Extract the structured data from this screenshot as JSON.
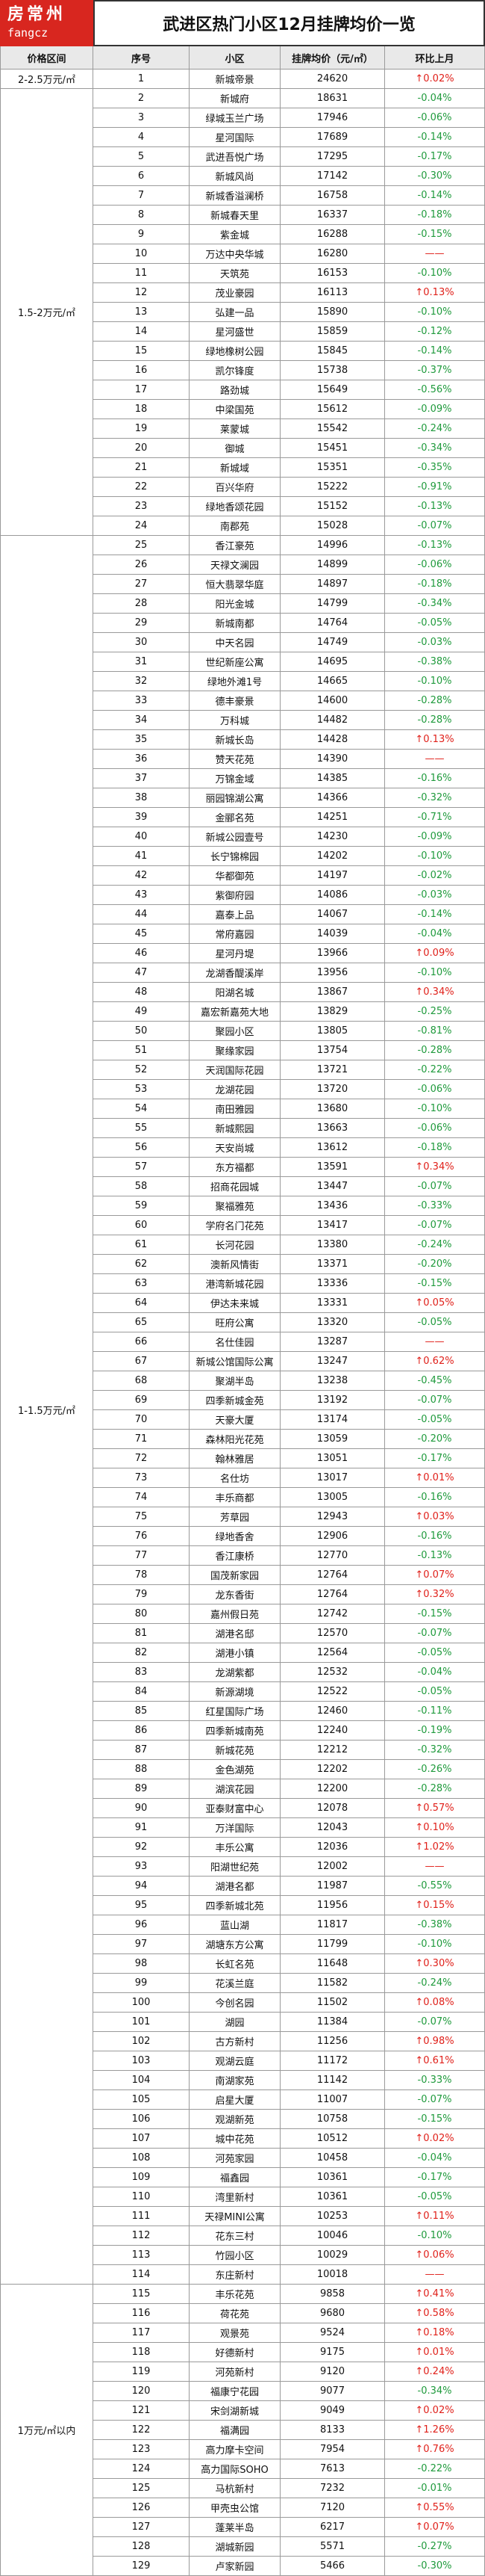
{
  "header": {
    "logo": "房常州",
    "logo_sub": "fangcz",
    "title": "武进区热门小区12月挂牌均价一览"
  },
  "table": {
    "columns": [
      "价格区间",
      "序号",
      "小区",
      "挂牌均价（元/㎡）",
      "环比上月"
    ],
    "groups": [
      {
        "range": "2-2.5万元/㎡",
        "rows": [
          [
            1,
            "新城帝景",
            24620,
            "↑0.02%"
          ]
        ]
      },
      {
        "range": "1.5-2万元/㎡",
        "rows": [
          [
            2,
            "新城府",
            18631,
            "-0.04%"
          ],
          [
            3,
            "绿城玉兰广场",
            17946,
            "-0.06%"
          ],
          [
            4,
            "星河国际",
            17689,
            "-0.14%"
          ],
          [
            5,
            "武进吾悦广场",
            17295,
            "-0.17%"
          ],
          [
            6,
            "新城风尚",
            17142,
            "-0.30%"
          ],
          [
            7,
            "新城香溢澜桥",
            16758,
            "-0.14%"
          ],
          [
            8,
            "新城春天里",
            16337,
            "-0.18%"
          ],
          [
            9,
            "紫金城",
            16288,
            "-0.15%"
          ],
          [
            10,
            "万达中央华城",
            16280,
            "——"
          ],
          [
            11,
            "天筑苑",
            16153,
            "-0.10%"
          ],
          [
            12,
            "茂业豪园",
            16113,
            "↑0.13%"
          ],
          [
            13,
            "弘建一品",
            15890,
            "-0.10%"
          ],
          [
            14,
            "星河盛世",
            15859,
            "-0.12%"
          ],
          [
            15,
            "绿地橡树公园",
            15845,
            "-0.14%"
          ],
          [
            16,
            "凯尔锋度",
            15738,
            "-0.37%"
          ],
          [
            17,
            "路劲城",
            15649,
            "-0.56%"
          ],
          [
            18,
            "中梁国苑",
            15612,
            "-0.09%"
          ],
          [
            19,
            "莱蒙城",
            15542,
            "-0.24%"
          ],
          [
            20,
            "御城",
            15451,
            "-0.34%"
          ],
          [
            21,
            "新城域",
            15351,
            "-0.35%"
          ],
          [
            22,
            "百兴华府",
            15222,
            "-0.91%"
          ],
          [
            23,
            "绿地香颂花园",
            15152,
            "-0.13%"
          ],
          [
            24,
            "南郡苑",
            15028,
            "-0.07%"
          ]
        ]
      },
      {
        "range": "1-1.5万元/㎡",
        "rows": [
          [
            25,
            "香江豪苑",
            14996,
            "-0.13%"
          ],
          [
            26,
            "天禄文澜园",
            14899,
            "-0.06%"
          ],
          [
            27,
            "恒大翡翠华庭",
            14897,
            "-0.18%"
          ],
          [
            28,
            "阳光金城",
            14799,
            "-0.34%"
          ],
          [
            29,
            "新城南都",
            14764,
            "-0.05%"
          ],
          [
            30,
            "中天名园",
            14749,
            "-0.03%"
          ],
          [
            31,
            "世纪新座公寓",
            14695,
            "-0.38%"
          ],
          [
            32,
            "绿地外滩1号",
            14665,
            "-0.10%"
          ],
          [
            33,
            "德丰豪景",
            14600,
            "-0.28%"
          ],
          [
            34,
            "万科城",
            14482,
            "-0.28%"
          ],
          [
            35,
            "新城长岛",
            14428,
            "↑0.13%"
          ],
          [
            36,
            "赞天花苑",
            14390,
            "——"
          ],
          [
            37,
            "万锦金域",
            14385,
            "-0.16%"
          ],
          [
            38,
            "丽园锦湖公寓",
            14366,
            "-0.32%"
          ],
          [
            39,
            "金郦名苑",
            14251,
            "-0.71%"
          ],
          [
            40,
            "新城公园壹号",
            14230,
            "-0.09%"
          ],
          [
            41,
            "长宁锦棉园",
            14202,
            "-0.10%"
          ],
          [
            42,
            "华都御苑",
            14197,
            "-0.02%"
          ],
          [
            43,
            "紫御府园",
            14086,
            "-0.03%"
          ],
          [
            44,
            "嘉泰上品",
            14067,
            "-0.14%"
          ],
          [
            45,
            "常府嘉园",
            14039,
            "-0.04%"
          ],
          [
            46,
            "星河丹堤",
            13966,
            "↑0.09%"
          ],
          [
            47,
            "龙湖香醍溪岸",
            13956,
            "-0.10%"
          ],
          [
            48,
            "阳湖名城",
            13867,
            "↑0.34%"
          ],
          [
            49,
            "嘉宏新嘉苑大地",
            13829,
            "-0.25%"
          ],
          [
            50,
            "聚园小区",
            13805,
            "-0.81%"
          ],
          [
            51,
            "聚缘家园",
            13754,
            "-0.28%"
          ],
          [
            52,
            "天润国际花园",
            13721,
            "-0.22%"
          ],
          [
            53,
            "龙湖花园",
            13720,
            "-0.06%"
          ],
          [
            54,
            "南田雅园",
            13680,
            "-0.10%"
          ],
          [
            55,
            "新城熙园",
            13663,
            "-0.06%"
          ],
          [
            56,
            "天安尚城",
            13612,
            "-0.18%"
          ],
          [
            57,
            "东方福都",
            13591,
            "↑0.34%"
          ],
          [
            58,
            "招商花园城",
            13447,
            "-0.07%"
          ],
          [
            59,
            "聚福雅苑",
            13436,
            "-0.33%"
          ],
          [
            60,
            "学府名门花苑",
            13417,
            "-0.07%"
          ],
          [
            61,
            "长河花园",
            13380,
            "-0.24%"
          ],
          [
            62,
            "澳新风情街",
            13371,
            "-0.20%"
          ],
          [
            63,
            "港湾新城花园",
            13336,
            "-0.15%"
          ],
          [
            64,
            "伊达未来城",
            13331,
            "↑0.05%"
          ],
          [
            65,
            "旺府公寓",
            13320,
            "-0.05%"
          ],
          [
            66,
            "名仕佳园",
            13287,
            "——"
          ],
          [
            67,
            "新城公馆国际公寓",
            13247,
            "↑0.62%"
          ],
          [
            68,
            "聚湖半岛",
            13238,
            "-0.45%"
          ],
          [
            69,
            "四季新城金苑",
            13192,
            "-0.07%"
          ],
          [
            70,
            "天豪大厦",
            13174,
            "-0.05%"
          ],
          [
            71,
            "森林阳光花苑",
            13059,
            "-0.20%"
          ],
          [
            72,
            "翰林雅居",
            13051,
            "-0.17%"
          ],
          [
            73,
            "名仕坊",
            13017,
            "↑0.01%"
          ],
          [
            74,
            "丰乐商都",
            13005,
            "-0.16%"
          ],
          [
            75,
            "芳草园",
            12943,
            "↑0.03%"
          ],
          [
            76,
            "绿地香舍",
            12906,
            "-0.16%"
          ],
          [
            77,
            "香江康桥",
            12770,
            "-0.13%"
          ],
          [
            78,
            "国茂新家园",
            12764,
            "↑0.07%"
          ],
          [
            79,
            "龙东香街",
            12764,
            "↑0.32%"
          ],
          [
            80,
            "嘉州假日苑",
            12742,
            "-0.15%"
          ],
          [
            81,
            "湖港名邸",
            12570,
            "-0.07%"
          ],
          [
            82,
            "湖港小镇",
            12564,
            "-0.05%"
          ],
          [
            83,
            "龙湖紫都",
            12532,
            "-0.04%"
          ],
          [
            84,
            "新源湖境",
            12522,
            "-0.05%"
          ],
          [
            85,
            "红星国际广场",
            12460,
            "-0.11%"
          ],
          [
            86,
            "四季新城南苑",
            12240,
            "-0.19%"
          ],
          [
            87,
            "新城花苑",
            12212,
            "-0.32%"
          ],
          [
            88,
            "金色湖苑",
            12202,
            "-0.26%"
          ],
          [
            89,
            "湖滨花园",
            12200,
            "-0.28%"
          ],
          [
            90,
            "亚泰财富中心",
            12078,
            "↑0.57%"
          ],
          [
            91,
            "万洋国际",
            12043,
            "↑0.10%"
          ],
          [
            92,
            "丰乐公寓",
            12036,
            "↑1.02%"
          ],
          [
            93,
            "阳湖世纪苑",
            12002,
            "——"
          ],
          [
            94,
            "湖港名都",
            11987,
            "-0.55%"
          ],
          [
            95,
            "四季新城北苑",
            11956,
            "↑0.15%"
          ],
          [
            96,
            "蓝山湖",
            11817,
            "-0.38%"
          ],
          [
            97,
            "湖塘东方公寓",
            11799,
            "-0.10%"
          ],
          [
            98,
            "长虹名苑",
            11648,
            "↑0.30%"
          ],
          [
            99,
            "花溪兰庭",
            11582,
            "-0.24%"
          ],
          [
            100,
            "今创名园",
            11502,
            "↑0.08%"
          ],
          [
            101,
            "湖园",
            11384,
            "-0.07%"
          ],
          [
            102,
            "古方新村",
            11256,
            "↑0.98%"
          ],
          [
            103,
            "观湖云庭",
            11172,
            "↑0.61%"
          ],
          [
            104,
            "南湖家苑",
            11142,
            "-0.33%"
          ],
          [
            105,
            "启星大厦",
            11007,
            "-0.07%"
          ],
          [
            106,
            "观湖新苑",
            10758,
            "-0.15%"
          ],
          [
            107,
            "城中花苑",
            10512,
            "↑0.02%"
          ],
          [
            108,
            "河苑家园",
            10458,
            "-0.04%"
          ],
          [
            109,
            "福鑫园",
            10361,
            "-0.17%"
          ],
          [
            110,
            "湾里新村",
            10361,
            "-0.05%"
          ],
          [
            111,
            "天禄MINI公寓",
            10253,
            "↑0.11%"
          ],
          [
            112,
            "花东三村",
            10046,
            "-0.10%"
          ],
          [
            113,
            "竹园小区",
            10029,
            "↑0.06%"
          ],
          [
            114,
            "东庄新村",
            10018,
            "——"
          ]
        ]
      },
      {
        "range": "1万元/㎡以内",
        "rows": [
          [
            115,
            "丰乐花苑",
            9858,
            "↑0.41%"
          ],
          [
            116,
            "荷花苑",
            9680,
            "↑0.58%"
          ],
          [
            117,
            "观景苑",
            9524,
            "↑0.18%"
          ],
          [
            118,
            "好德新村",
            9175,
            "↑0.01%"
          ],
          [
            119,
            "河苑新村",
            9120,
            "↑0.24%"
          ],
          [
            120,
            "福康宁花园",
            9077,
            "-0.34%"
          ],
          [
            121,
            "宋剑湖新城",
            9049,
            "↑0.02%"
          ],
          [
            122,
            "福满园",
            8133,
            "↑1.26%"
          ],
          [
            123,
            "高力摩卡空间",
            7954,
            "↑0.76%"
          ],
          [
            124,
            "高力国际SOHO",
            7613,
            "-0.22%"
          ],
          [
            125,
            "马杭新村",
            7232,
            "-0.01%"
          ],
          [
            126,
            "甲壳虫公馆",
            7120,
            "↑0.55%"
          ],
          [
            127,
            "蓬莱半岛",
            6217,
            "↑0.07%"
          ],
          [
            128,
            "湖城新园",
            5571,
            "-0.27%"
          ],
          [
            129,
            "卢家新园",
            5466,
            "-0.30%"
          ]
        ]
      }
    ]
  }
}
